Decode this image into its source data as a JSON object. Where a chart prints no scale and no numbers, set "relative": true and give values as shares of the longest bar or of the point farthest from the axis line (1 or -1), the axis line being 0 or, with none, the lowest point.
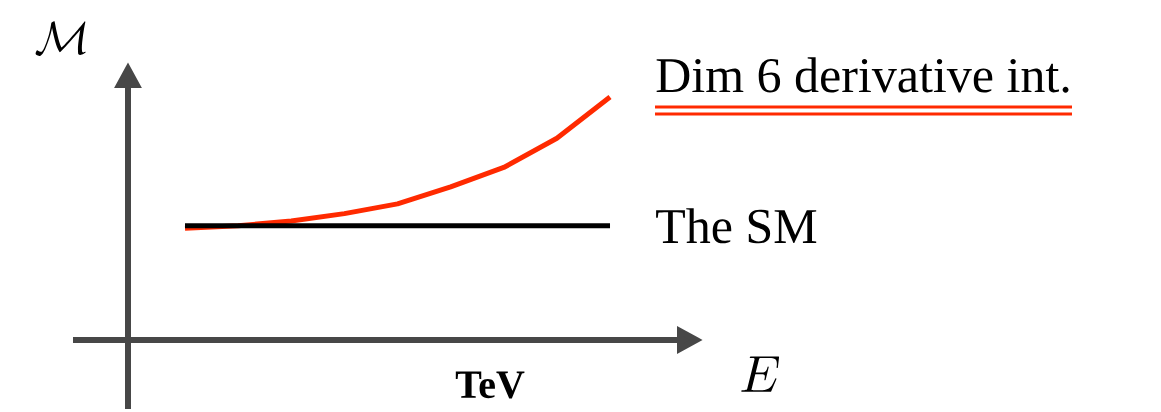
{
  "chart_data": {
    "type": "line",
    "relative": true,
    "xlabel": "TeV",
    "annotations": [
      "\\mathcal{M}",
      "E"
    ],
    "categories": [
      null,
      null,
      null,
      null,
      null,
      null,
      null,
      null,
      null
    ],
    "series": [
      {
        "name": "Dim 6 derivative int.",
        "color": "#ff2a00",
        "values": [
          0.46,
          0.47,
          0.49,
          0.52,
          0.56,
          0.63,
          0.71,
          0.83,
          1
        ]
      },
      {
        "name": "The SM",
        "color": "#000000",
        "values": [
          0.47,
          0.47,
          0.47,
          0.47,
          0.47,
          0.47,
          0.47,
          0.47,
          0.47
        ]
      }
    ]
  }
}
